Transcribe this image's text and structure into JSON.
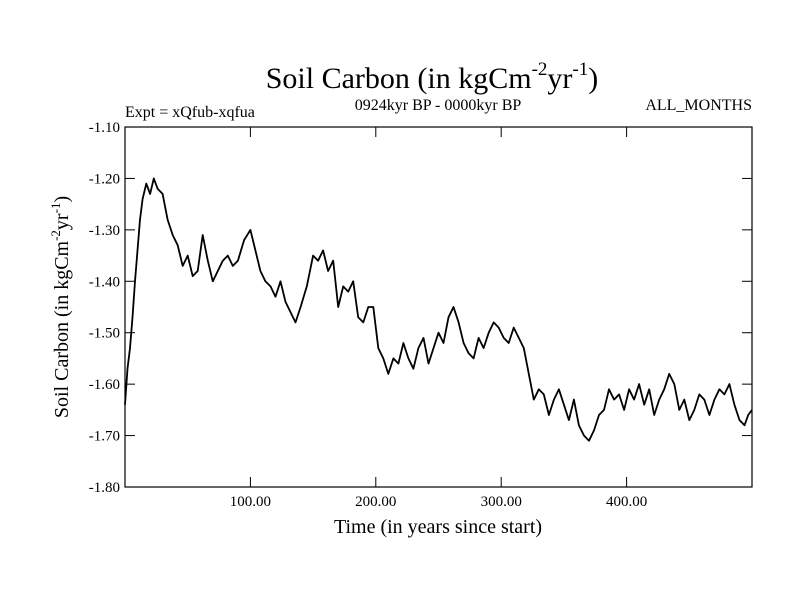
{
  "chart_data": {
    "type": "line",
    "title": {
      "main": "Soil Carbon (in kgCm",
      "sup1": "-2",
      "mid": "yr",
      "sup2": "-1",
      "end": ")"
    },
    "subtitle_left": "Expt = xQfub-xqfua",
    "subtitle_center": "0924kyr BP - 0000kyr BP",
    "subtitle_right": "ALL_MONTHS",
    "xlabel": "Time (in years since start)",
    "ylabel": {
      "main": "Soil Carbon (in kgCm",
      "sup1": "-2",
      "mid": "yr",
      "sup2": "-1",
      "end": ")"
    },
    "xlim": [
      0,
      500
    ],
    "ylim": [
      -1.8,
      -1.1
    ],
    "xticks": [
      100,
      200,
      300,
      400
    ],
    "xtick_labels": [
      "100.00",
      "200.00",
      "300.00",
      "400.00"
    ],
    "yticks": [
      -1.1,
      -1.2,
      -1.3,
      -1.4,
      -1.5,
      -1.6,
      -1.7,
      -1.8
    ],
    "ytick_labels": [
      "-1.10",
      "-1.20",
      "-1.30",
      "-1.40",
      "-1.50",
      "-1.60",
      "-1.70",
      "-1.80"
    ],
    "series": [
      {
        "name": "Soil Carbon",
        "color": "#000000",
        "x": [
          0,
          2,
          4,
          6,
          8,
          10,
          12,
          14,
          17,
          20,
          23,
          26,
          30,
          34,
          38,
          42,
          46,
          50,
          54,
          58,
          62,
          66,
          70,
          74,
          78,
          82,
          86,
          90,
          95,
          100,
          104,
          108,
          112,
          116,
          120,
          124,
          128,
          132,
          136,
          140,
          145,
          150,
          154,
          158,
          162,
          166,
          170,
          174,
          178,
          182,
          186,
          190,
          194,
          198,
          202,
          206,
          210,
          214,
          218,
          222,
          226,
          230,
          234,
          238,
          242,
          246,
          250,
          254,
          258,
          262,
          266,
          270,
          274,
          278,
          282,
          286,
          290,
          294,
          298,
          302,
          306,
          310,
          314,
          318,
          322,
          326,
          330,
          334,
          338,
          342,
          346,
          350,
          354,
          358,
          362,
          366,
          370,
          374,
          378,
          382,
          386,
          390,
          394,
          398,
          402,
          406,
          410,
          414,
          418,
          422,
          426,
          430,
          434,
          438,
          442,
          446,
          450,
          454,
          458,
          462,
          466,
          470,
          474,
          478,
          482,
          486,
          490,
          494,
          497,
          500
        ],
        "values": [
          -1.64,
          -1.57,
          -1.53,
          -1.47,
          -1.4,
          -1.34,
          -1.28,
          -1.24,
          -1.21,
          -1.23,
          -1.2,
          -1.22,
          -1.23,
          -1.28,
          -1.31,
          -1.33,
          -1.37,
          -1.35,
          -1.39,
          -1.38,
          -1.31,
          -1.36,
          -1.4,
          -1.38,
          -1.36,
          -1.35,
          -1.37,
          -1.36,
          -1.32,
          -1.3,
          -1.34,
          -1.38,
          -1.4,
          -1.41,
          -1.43,
          -1.4,
          -1.44,
          -1.46,
          -1.48,
          -1.45,
          -1.41,
          -1.35,
          -1.36,
          -1.34,
          -1.38,
          -1.36,
          -1.45,
          -1.41,
          -1.42,
          -1.4,
          -1.47,
          -1.48,
          -1.45,
          -1.45,
          -1.53,
          -1.55,
          -1.58,
          -1.55,
          -1.56,
          -1.52,
          -1.55,
          -1.57,
          -1.53,
          -1.51,
          -1.56,
          -1.53,
          -1.5,
          -1.52,
          -1.47,
          -1.45,
          -1.48,
          -1.52,
          -1.54,
          -1.55,
          -1.51,
          -1.53,
          -1.5,
          -1.48,
          -1.49,
          -1.51,
          -1.52,
          -1.49,
          -1.51,
          -1.53,
          -1.58,
          -1.63,
          -1.61,
          -1.62,
          -1.66,
          -1.63,
          -1.61,
          -1.64,
          -1.67,
          -1.63,
          -1.68,
          -1.7,
          -1.71,
          -1.69,
          -1.66,
          -1.65,
          -1.61,
          -1.63,
          -1.62,
          -1.65,
          -1.61,
          -1.63,
          -1.6,
          -1.64,
          -1.61,
          -1.66,
          -1.63,
          -1.61,
          -1.58,
          -1.6,
          -1.65,
          -1.63,
          -1.67,
          -1.65,
          -1.62,
          -1.63,
          -1.66,
          -1.63,
          -1.61,
          -1.62,
          -1.6,
          -1.64,
          -1.67,
          -1.68,
          -1.66,
          -1.65
        ]
      }
    ],
    "grid": false,
    "legend": "none"
  }
}
